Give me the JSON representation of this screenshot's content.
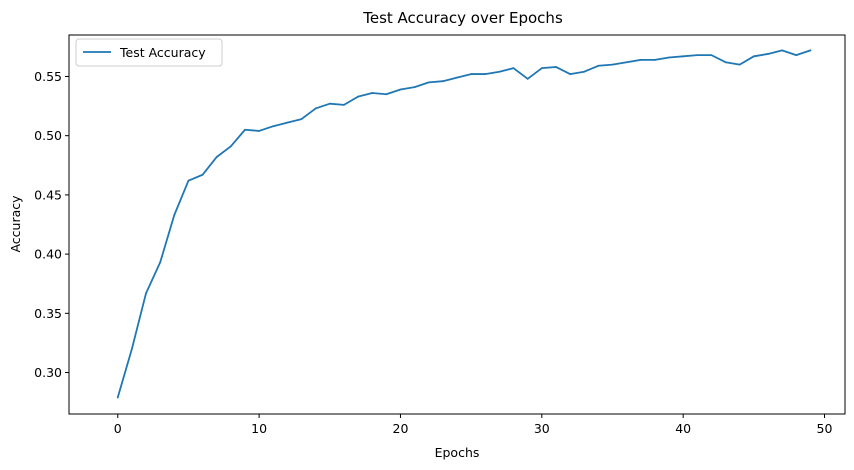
{
  "chart_data": {
    "type": "line",
    "title": "Test Accuracy over Epochs",
    "xlabel": "Epochs",
    "ylabel": "Accuracy",
    "xlim": [
      -3.45,
      51.45
    ],
    "ylim": [
      0.265,
      0.585
    ],
    "xticks": [
      0,
      10,
      20,
      30,
      40,
      50
    ],
    "yticks": [
      0.3,
      0.35,
      0.4,
      0.45,
      0.5,
      0.55
    ],
    "xtick_labels": [
      "0",
      "10",
      "20",
      "30",
      "40",
      "50"
    ],
    "ytick_labels": [
      "0.30",
      "0.35",
      "0.40",
      "0.45",
      "0.50",
      "0.55"
    ],
    "grid": false,
    "legend": {
      "position": "top-left"
    },
    "series": [
      {
        "name": "Test Accuracy",
        "color": "#1f77b4",
        "x": [
          0,
          1,
          2,
          3,
          4,
          5,
          6,
          7,
          8,
          9,
          10,
          11,
          12,
          13,
          14,
          15,
          16,
          17,
          18,
          19,
          20,
          21,
          22,
          23,
          24,
          25,
          26,
          27,
          28,
          29,
          30,
          31,
          32,
          33,
          34,
          35,
          36,
          37,
          38,
          39,
          40,
          41,
          42,
          43,
          44,
          45,
          46,
          47,
          48,
          49
        ],
        "y": [
          0.279,
          0.32,
          0.367,
          0.393,
          0.433,
          0.462,
          0.467,
          0.482,
          0.491,
          0.505,
          0.504,
          0.508,
          0.511,
          0.514,
          0.523,
          0.527,
          0.526,
          0.533,
          0.536,
          0.535,
          0.539,
          0.541,
          0.545,
          0.546,
          0.549,
          0.552,
          0.552,
          0.554,
          0.557,
          0.548,
          0.557,
          0.558,
          0.552,
          0.554,
          0.559,
          0.56,
          0.562,
          0.564,
          0.564,
          0.566,
          0.567,
          0.568,
          0.568,
          0.562,
          0.56,
          0.567,
          0.569,
          0.572,
          0.568,
          0.572
        ]
      }
    ]
  }
}
